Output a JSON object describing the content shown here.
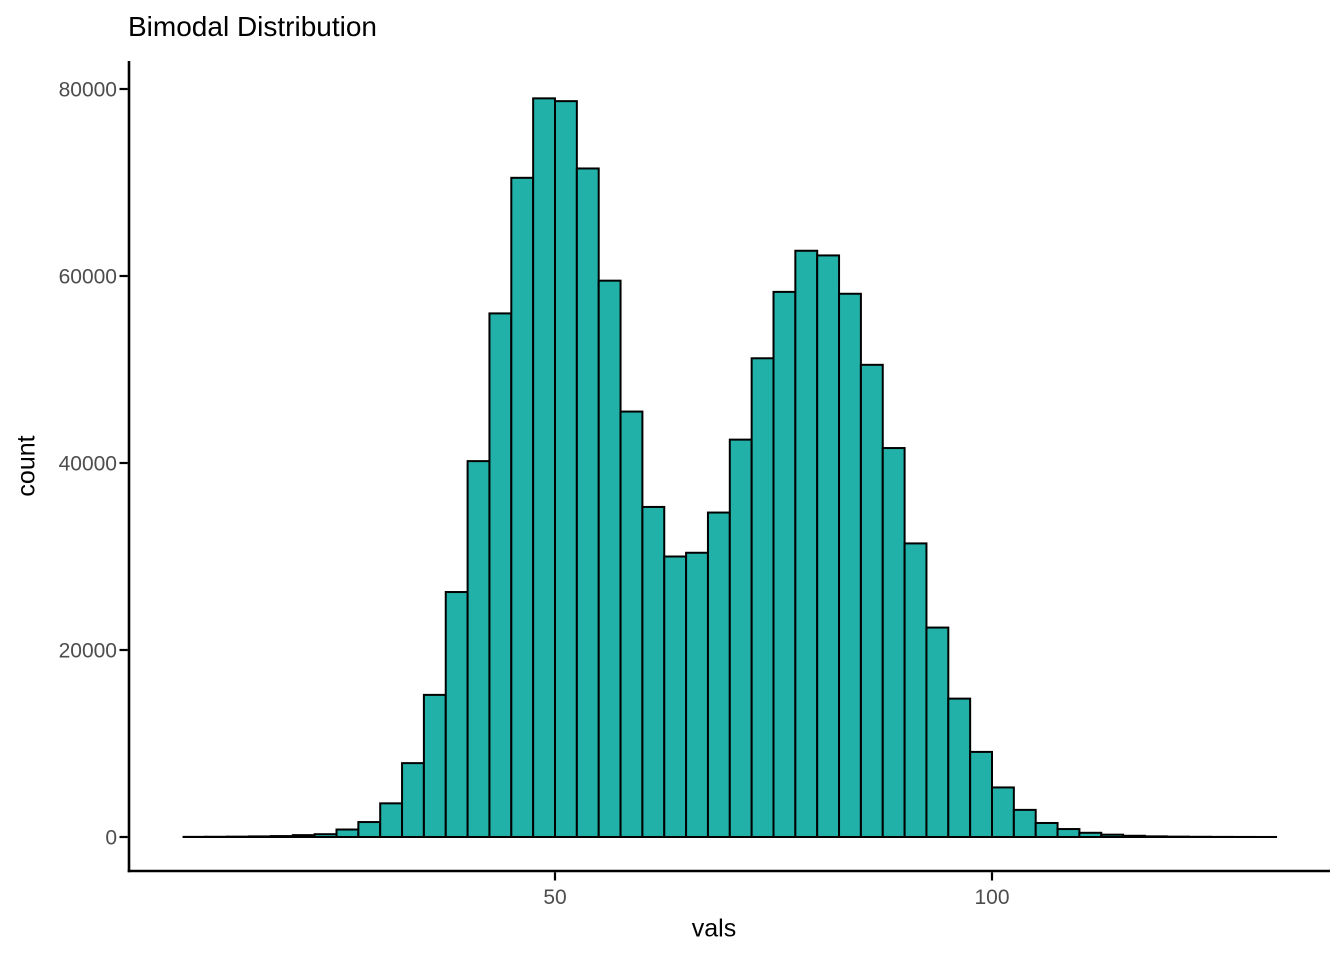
{
  "chart_data": {
    "type": "bar",
    "subtype": "histogram",
    "title": "Bimodal Distribution",
    "xlabel": "vals",
    "ylabel": "count",
    "legend": false,
    "grid": false,
    "background": "#ffffff",
    "bar_fill": "#21b1a9",
    "bar_stroke": "#000000",
    "axis_color": "#000000",
    "tick_label_color": "#4d4d4d",
    "x_ticks": [
      50,
      100
    ],
    "y_ticks": [
      0,
      20000,
      40000,
      60000,
      80000
    ],
    "xlim": [
      1.25,
      138.75
    ],
    "ylim": [
      0,
      83000
    ],
    "bin_start": 7.5,
    "bin_width": 2.5,
    "counts": [
      15,
      25,
      40,
      65,
      100,
      200,
      300,
      800,
      1600,
      3600,
      7900,
      15200,
      26200,
      40200,
      56000,
      70500,
      79000,
      78700,
      71500,
      59500,
      45500,
      35300,
      30000,
      30400,
      34700,
      42500,
      51200,
      58300,
      62700,
      62200,
      58100,
      50500,
      41600,
      31400,
      22400,
      14800,
      9100,
      5300,
      2900,
      1500,
      850,
      450,
      250,
      130,
      70,
      40,
      22,
      12,
      6,
      3
    ]
  }
}
